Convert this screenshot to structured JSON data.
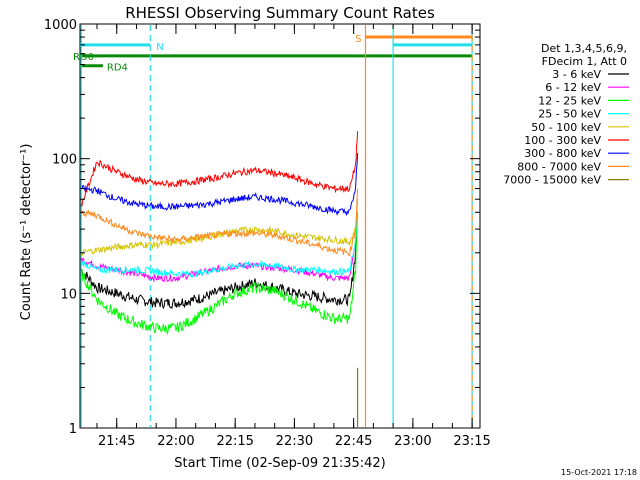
{
  "chart_data": {
    "type": "line",
    "title": "RHESSI Observing Summary Count Rates",
    "xlabel": "Start Time (02-Sep-09 21:35:42)",
    "ylabel": "Count Rate (s⁻¹ detector⁻¹)",
    "xlim": [
      "21:35:42",
      "23:17:00"
    ],
    "ylim": [
      1,
      1000
    ],
    "yscale": "log",
    "x_ticks": [
      "21:45",
      "22:00",
      "22:15",
      "22:30",
      "22:45",
      "23:00",
      "23:15"
    ],
    "y_ticks": [
      "1",
      "10",
      "100",
      "1000"
    ],
    "legend_title": [
      "Det 1,3,4,5,6,9,",
      "FDecim 1, Att 0"
    ],
    "legend_position": "right",
    "timestamp": "15-Oct-2021 17:18",
    "grid": false,
    "flag_bars": [
      {
        "label": "N",
        "color": "#22e0e8",
        "level": 700,
        "segments": [
          [
            "21:35:42",
            "21:53:30"
          ],
          [
            "22:55:00",
            "23:15:00"
          ]
        ]
      },
      {
        "label": "S",
        "color": "#ff8a1e",
        "level": 800,
        "segments": [
          [
            "22:48:00",
            "23:15:00"
          ]
        ]
      },
      {
        "label": "RD0",
        "color": "#0a8a0a",
        "level": 580,
        "segments": [
          [
            "21:35:42",
            "23:15:00"
          ]
        ]
      },
      {
        "label": "RD4",
        "color": "#0a8a0a",
        "level": 490,
        "segments": [
          [
            "21:35:42",
            "21:41:30"
          ]
        ]
      }
    ],
    "markers": [
      {
        "time": "21:36:00",
        "color": "#22e0e8",
        "style": "solid"
      },
      {
        "time": "21:53:30",
        "color": "#22e0e8",
        "style": "dashed"
      },
      {
        "time": "22:48:00",
        "color": "#ff8a1e",
        "style": "solid"
      },
      {
        "time": "22:55:00",
        "color": "#22e0e8",
        "style": "solid"
      },
      {
        "time": "23:15:00",
        "color": "#22e0e8",
        "style": "solid"
      },
      {
        "time": "23:15:00",
        "color": "#ff8a1e",
        "style": "dashed"
      }
    ],
    "x": [
      "21:36:00",
      "21:40:00",
      "21:45:00",
      "21:50:00",
      "21:55:00",
      "22:00:00",
      "22:05:00",
      "22:10:00",
      "22:15:00",
      "22:20:00",
      "22:25:00",
      "22:30:00",
      "22:35:00",
      "22:40:00",
      "22:44:00",
      "22:45:30",
      "22:46:00"
    ],
    "series": [
      {
        "name": "3 - 6 keV",
        "color": "#000000",
        "values": [
          15,
          11,
          10,
          9,
          8.5,
          8.5,
          9,
          10,
          11,
          12,
          11,
          10,
          9.5,
          9,
          9,
          20,
          40
        ]
      },
      {
        "name": "6 - 12 keV",
        "color": "#ff00ff",
        "values": [
          18,
          16,
          15,
          14,
          13,
          13,
          14,
          15,
          16,
          16,
          15.5,
          15,
          14,
          13,
          13,
          25,
          50
        ]
      },
      {
        "name": "12 - 25 keV",
        "color": "#00ff00",
        "values": [
          14,
          9,
          7,
          6,
          5.5,
          5.5,
          6.5,
          8,
          10,
          11,
          10.5,
          9,
          7.5,
          6.5,
          6.5,
          15,
          40
        ]
      },
      {
        "name": "25 - 50 keV",
        "color": "#00ffff",
        "values": [
          17,
          15,
          15,
          15,
          14.5,
          14,
          14,
          15,
          16,
          16.5,
          16,
          15,
          15,
          14.5,
          14.5,
          25,
          50
        ]
      },
      {
        "name": "50 - 100 keV",
        "color": "#d4c400",
        "values": [
          20,
          21,
          22,
          23,
          23,
          24,
          25,
          27,
          29,
          30,
          29,
          27,
          26,
          25,
          24,
          30,
          50
        ]
      },
      {
        "name": "100 - 300 keV",
        "color": "#ff0000",
        "values": [
          45,
          95,
          80,
          70,
          65,
          65,
          68,
          72,
          78,
          82,
          78,
          72,
          65,
          60,
          60,
          90,
          160
        ]
      },
      {
        "name": "300 - 800 keV",
        "color": "#0000ff",
        "values": [
          60,
          58,
          50,
          46,
          44,
          44,
          45,
          47,
          50,
          52,
          50,
          47,
          44,
          41,
          40,
          60,
          110
        ]
      },
      {
        "name": "800 - 7000 keV",
        "color": "#ff8a1e",
        "values": [
          40,
          38,
          32,
          28,
          26,
          25,
          26,
          27,
          28,
          28,
          27,
          25,
          23,
          21,
          20,
          30,
          60
        ]
      },
      {
        "name": "7000 - 15000 keV",
        "color": "#808000",
        "values": [
          null,
          null,
          null,
          null,
          null,
          null,
          null,
          null,
          null,
          null,
          null,
          null,
          null,
          null,
          null,
          1.8,
          2.8
        ]
      }
    ]
  }
}
